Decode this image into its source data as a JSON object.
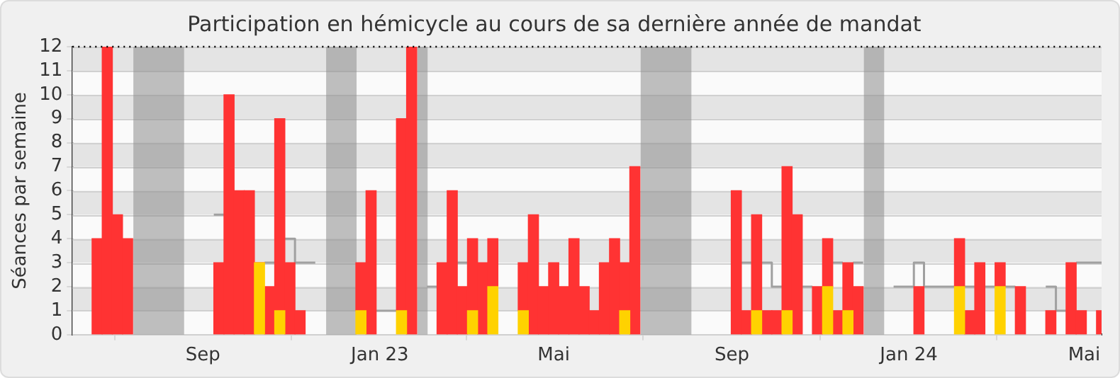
{
  "chart_data": {
    "type": "bar",
    "title": "Participation en hémicycle au cours de sa dernière année de mandat",
    "ylabel": "Séances par semaine",
    "x": [
      "2022-06-20",
      "2022-06-27",
      "2022-07-04",
      "2022-07-11",
      "2022-07-18",
      "2022-07-25",
      "2022-08-01",
      "2022-08-08",
      "2022-08-15",
      "2022-08-22",
      "2022-08-29",
      "2022-09-05",
      "2022-09-12",
      "2022-09-19",
      "2022-09-26",
      "2022-10-03",
      "2022-10-10",
      "2022-10-17",
      "2022-10-24",
      "2022-10-31",
      "2022-11-07",
      "2022-11-14",
      "2022-11-21",
      "2022-11-28",
      "2022-12-05",
      "2022-12-12",
      "2022-12-19",
      "2022-12-26",
      "2023-01-02",
      "2023-01-09",
      "2023-01-16",
      "2023-01-23",
      "2023-01-30",
      "2023-02-06",
      "2023-02-13",
      "2023-02-20",
      "2023-02-27",
      "2023-03-06",
      "2023-03-13",
      "2023-03-20",
      "2023-03-27",
      "2023-04-03",
      "2023-04-10",
      "2023-04-17",
      "2023-04-24",
      "2023-05-01",
      "2023-05-08",
      "2023-05-15",
      "2023-05-22",
      "2023-05-29",
      "2023-06-05",
      "2023-06-12",
      "2023-06-19",
      "2023-06-26",
      "2023-07-03",
      "2023-07-10",
      "2023-07-17",
      "2023-07-24",
      "2023-07-31",
      "2023-08-07",
      "2023-08-14",
      "2023-08-21",
      "2023-08-28",
      "2023-09-04",
      "2023-09-11",
      "2023-09-18",
      "2023-09-25",
      "2023-10-02",
      "2023-10-09",
      "2023-10-16",
      "2023-10-23",
      "2023-10-30",
      "2023-11-06",
      "2023-11-13",
      "2023-11-20",
      "2023-11-27",
      "2023-12-04",
      "2023-12-11",
      "2023-12-18",
      "2023-12-25",
      "2024-01-01",
      "2024-01-08",
      "2024-01-15",
      "2024-01-22",
      "2024-01-29",
      "2024-02-05",
      "2024-02-12",
      "2024-02-19",
      "2024-02-26",
      "2024-03-04",
      "2024-03-11",
      "2024-03-18",
      "2024-03-25",
      "2024-04-01",
      "2024-04-08",
      "2024-04-15",
      "2024-04-22",
      "2024-04-29",
      "2024-05-06",
      "2024-05-13"
    ],
    "series": [
      {
        "color": "#ffd200",
        "values": [
          null,
          null,
          null,
          null,
          null,
          null,
          null,
          null,
          null,
          null,
          null,
          null,
          null,
          null,
          null,
          null,
          3,
          null,
          1,
          null,
          null,
          null,
          null,
          null,
          null,
          null,
          1,
          null,
          null,
          null,
          1,
          null,
          null,
          null,
          null,
          null,
          null,
          1,
          null,
          2,
          null,
          null,
          1,
          null,
          null,
          null,
          null,
          null,
          null,
          null,
          null,
          null,
          1,
          null,
          null,
          null,
          null,
          null,
          null,
          null,
          null,
          null,
          null,
          null,
          null,
          1,
          null,
          null,
          1,
          null,
          null,
          null,
          2,
          null,
          1,
          null,
          null,
          null,
          null,
          null,
          null,
          null,
          null,
          null,
          null,
          2,
          null,
          null,
          null,
          2,
          null,
          null,
          null,
          null,
          null,
          null,
          null,
          null,
          null,
          null
        ]
      },
      {
        "color": "#ff3333",
        "values": [
          4,
          12,
          5,
          4,
          null,
          null,
          null,
          null,
          null,
          null,
          null,
          null,
          3,
          10,
          6,
          6,
          0,
          2,
          8,
          3,
          1,
          null,
          null,
          null,
          null,
          null,
          2,
          6,
          null,
          null,
          8,
          12,
          null,
          null,
          3,
          6,
          2,
          3,
          3,
          2,
          null,
          null,
          2,
          5,
          2,
          3,
          2,
          4,
          2,
          1,
          3,
          4,
          2,
          7,
          null,
          null,
          null,
          null,
          null,
          null,
          null,
          null,
          null,
          6,
          1,
          4,
          1,
          1,
          6,
          5,
          null,
          2,
          2,
          1,
          2,
          2,
          null,
          null,
          null,
          null,
          null,
          2,
          null,
          null,
          null,
          2,
          1,
          3,
          null,
          1,
          null,
          2,
          null,
          null,
          1,
          null,
          3,
          1,
          null,
          1
        ]
      },
      {
        "type": "line",
        "color": "#a0a0a0",
        "x": [
          "2022-09-08T12:00",
          "2022-09-15T12:00"
        ],
        "values": [
          5,
          5
        ]
      },
      {
        "type": "line",
        "color": "#a0a0a0",
        "x": [
          "2022-10-13T12:00",
          "2022-10-20T12:00"
        ],
        "values": [
          3,
          3
        ]
      },
      {
        "type": "line",
        "color": "#a0a0a0",
        "x": [
          "2022-10-27T12:00",
          "2022-11-03T12:00",
          "2022-11-03T12:00",
          "2022-11-17T12:00"
        ],
        "values": [
          4,
          4,
          3,
          3
        ]
      },
      {
        "type": "line",
        "color": "#a0a0a0",
        "x": [
          "2022-12-29T12:00",
          "2023-01-12T12:00"
        ],
        "values": [
          1,
          1
        ]
      },
      {
        "type": "line",
        "color": "#a0a0a0",
        "x": [
          "2023-02-02T12:00",
          "2023-02-09T12:00"
        ],
        "values": [
          2,
          2
        ]
      },
      {
        "type": "line",
        "color": "#a0a0a0",
        "x": [
          "2023-02-23T12:00",
          "2023-03-02T12:00"
        ],
        "values": [
          3,
          3
        ]
      },
      {
        "type": "line",
        "color": "#a0a0a0",
        "x": [
          "2023-09-07T12:00",
          "2023-09-14T12:00"
        ],
        "values": [
          3,
          3
        ]
      },
      {
        "type": "line",
        "color": "#a0a0a0",
        "x": [
          "2023-09-21T12:00",
          "2023-09-28T12:00",
          "2023-09-28T12:00",
          "2023-10-05T12:00"
        ],
        "values": [
          3,
          3,
          2,
          2
        ]
      },
      {
        "type": "line",
        "color": "#a0a0a0",
        "x": [
          "2023-10-19T12:00",
          "2023-10-26T12:00"
        ],
        "values": [
          2,
          2
        ]
      },
      {
        "type": "line",
        "color": "#a0a0a0",
        "x": [
          "2023-11-09T12:00",
          "2023-11-16T12:00"
        ],
        "values": [
          3,
          3
        ]
      },
      {
        "type": "line",
        "color": "#a0a0a0",
        "x": [
          "2023-11-23T12:00",
          "2023-11-30T12:00"
        ],
        "values": [
          3,
          3
        ]
      },
      {
        "type": "line",
        "color": "#a0a0a0",
        "x": [
          "2023-12-21T12:00",
          "2024-01-04T12:00",
          "2024-01-04T12:00",
          "2024-01-11T12:00",
          "2024-01-11T12:00",
          "2024-02-01T12:00"
        ],
        "values": [
          2,
          2,
          3,
          3,
          2,
          2
        ]
      },
      {
        "type": "line",
        "color": "#a0a0a0",
        "x": [
          "2024-02-08T12:00",
          "2024-02-15T12:00"
        ],
        "values": [
          2,
          2
        ]
      },
      {
        "type": "line",
        "color": "#a0a0a0",
        "x": [
          "2024-02-22T12:00",
          "2024-02-29T12:00"
        ],
        "values": [
          2,
          2
        ]
      },
      {
        "type": "line",
        "color": "#a0a0a0",
        "x": [
          "2024-03-07T12:00",
          "2024-03-14T12:00"
        ],
        "values": [
          2,
          2
        ]
      },
      {
        "type": "line",
        "color": "#a0a0a0",
        "x": [
          "2024-04-04T12:00",
          "2024-04-11T12:00",
          "2024-04-11T12:00",
          "2024-04-18T12:00"
        ],
        "values": [
          2,
          2,
          1,
          1
        ]
      },
      {
        "type": "line",
        "color": "#a0a0a0",
        "x": [
          "2024-04-25T12:00",
          "2024-05-13"
        ],
        "values": [
          3,
          3
        ]
      }
    ],
    "stacked": true,
    "xlim": [
      "2022-06-03",
      "2024-05-13"
    ],
    "xticks": [
      {
        "value": "2022-09-01",
        "label": "Sep"
      },
      {
        "value": "2023-01-01",
        "label": "Jan 23"
      },
      {
        "value": "2023-05-01",
        "label": "Mai"
      },
      {
        "value": "2023-09-01",
        "label": "Sep"
      },
      {
        "value": "2024-01-01",
        "label": "Jan 24"
      },
      {
        "value": "2024-05-01",
        "label": "Mai"
      }
    ],
    "ylim": [
      0,
      12
    ],
    "yticks": [
      0,
      1,
      2,
      3,
      4,
      5,
      6,
      7,
      8,
      9,
      10,
      11,
      12
    ],
    "grid": "y",
    "legend": false,
    "bands": [
      {
        "axis": "x",
        "from": "2022-07-15",
        "to": "2022-08-19",
        "color": "#8c8c8c"
      },
      {
        "axis": "x",
        "from": "2022-11-25",
        "to": "2022-12-16",
        "color": "#8c8c8c"
      },
      {
        "axis": "x",
        "from": "2023-01-27",
        "to": "2023-02-03",
        "color": "#8c8c8c"
      },
      {
        "axis": "x",
        "from": "2023-06-30",
        "to": "2023-08-04",
        "color": "#8c8c8c"
      },
      {
        "axis": "x",
        "from": "2023-12-01",
        "to": "2023-12-15",
        "color": "#8c8c8c"
      }
    ],
    "ref_lines": [
      {
        "axis": "y",
        "value": 12,
        "color": "#000000",
        "line_style": "dotted"
      }
    ]
  }
}
